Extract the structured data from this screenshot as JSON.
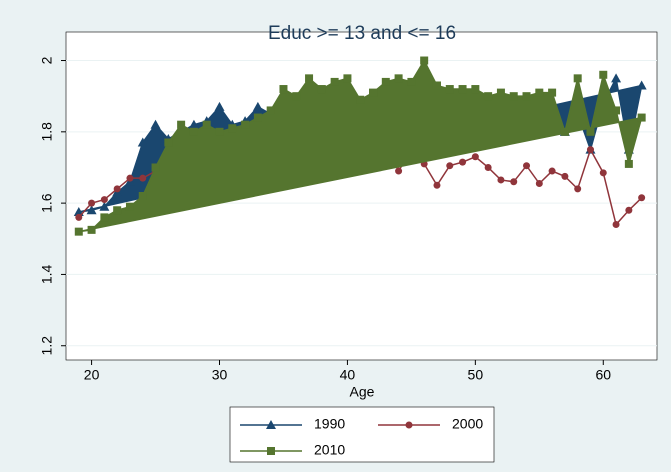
{
  "chart_data": {
    "type": "line",
    "title": "Educ >= 13 and <= 16",
    "x_label": "Age",
    "x": [
      19,
      20,
      21,
      22,
      23,
      24,
      25,
      26,
      27,
      28,
      29,
      30,
      31,
      32,
      33,
      34,
      35,
      36,
      37,
      38,
      39,
      40,
      41,
      42,
      43,
      44,
      45,
      46,
      47,
      48,
      49,
      50,
      51,
      52,
      53,
      54,
      55,
      56,
      57,
      58,
      59,
      60,
      61,
      62,
      63
    ],
    "xlim": [
      18,
      64.2
    ],
    "xticks": [
      20,
      30,
      40,
      50,
      60
    ],
    "ylim": [
      1.16,
      2.08
    ],
    "yticks": [
      1.2,
      1.4,
      1.6,
      1.8,
      2
    ],
    "grid": true,
    "legend_position": "bottom",
    "series": [
      {
        "name": "1990",
        "color": "#1a476f",
        "marker": "triangle",
        "filled": true,
        "values": [
          1.575,
          1.58,
          1.59,
          1.63,
          1.66,
          1.77,
          1.82,
          1.78,
          1.8,
          1.82,
          1.83,
          1.87,
          1.82,
          1.83,
          1.87,
          1.85,
          1.9,
          1.89,
          1.9,
          1.9,
          1.91,
          1.9,
          1.88,
          1.89,
          1.9,
          1.91,
          1.9,
          1.93,
          1.9,
          1.89,
          1.88,
          1.89,
          1.88,
          1.87,
          1.87,
          1.86,
          1.85,
          1.81,
          1.8,
          1.85,
          1.75,
          1.88,
          1.95,
          1.75,
          1.93
        ]
      },
      {
        "name": "2000",
        "color": "#90353b",
        "marker": "circle",
        "filled": false,
        "values": [
          1.56,
          1.6,
          1.61,
          1.64,
          1.67,
          1.67,
          1.69,
          1.74,
          1.76,
          1.75,
          1.77,
          1.78,
          1.77,
          1.76,
          1.78,
          1.79,
          1.8,
          1.79,
          1.8,
          1.81,
          1.8,
          1.79,
          1.78,
          1.77,
          1.76,
          1.69,
          1.75,
          1.71,
          1.65,
          1.705,
          1.715,
          1.73,
          1.7,
          1.665,
          1.66,
          1.705,
          1.655,
          1.69,
          1.675,
          1.64,
          1.75,
          1.685,
          1.54,
          1.58,
          1.615
        ]
      },
      {
        "name": "2010",
        "color": "#55752f",
        "marker": "square",
        "filled": true,
        "values": [
          1.52,
          1.525,
          1.56,
          1.58,
          1.59,
          1.62,
          1.7,
          1.77,
          1.82,
          1.8,
          1.82,
          1.8,
          1.81,
          1.82,
          1.84,
          1.86,
          1.92,
          1.9,
          1.95,
          1.92,
          1.94,
          1.95,
          1.89,
          1.91,
          1.94,
          1.95,
          1.94,
          2.0,
          1.93,
          1.92,
          1.92,
          1.92,
          1.9,
          1.91,
          1.9,
          1.9,
          1.91,
          1.91,
          1.8,
          1.95,
          1.8,
          1.96,
          1.86,
          1.71,
          1.84
        ]
      }
    ]
  }
}
